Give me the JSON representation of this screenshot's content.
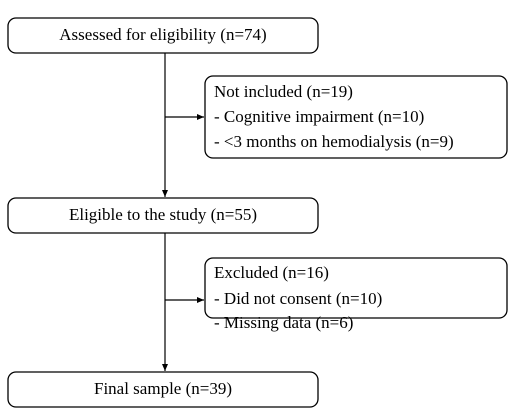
{
  "nodes": [
    {
      "label": "Assessed for eligibility (n=74)"
    },
    {
      "label": "Eligible to the study (n=55)"
    },
    {
      "label": "Final sample (n=39)"
    }
  ],
  "exclusions": [
    {
      "title": "Not included (n=19)",
      "items": [
        "- Cognitive impairment (n=10)",
        "- <3 months on hemodialysis (n=9)"
      ]
    },
    {
      "title": "Excluded (n=16)",
      "items": [
        "- Did not consent (n=10)",
        "- Missing data (n=6)"
      ]
    }
  ]
}
